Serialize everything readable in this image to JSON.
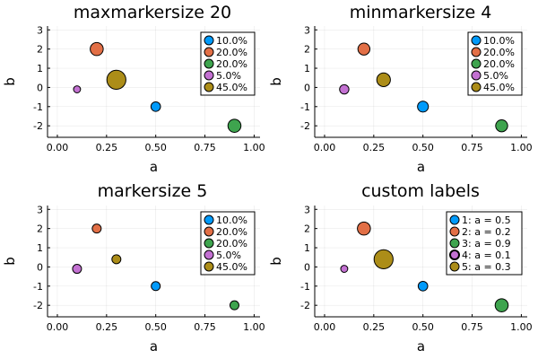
{
  "chart_data": [
    {
      "type": "scatter",
      "title": "maxmarkersize 20",
      "xlabel": "a",
      "ylabel": "b",
      "xlim": [
        -0.05,
        1.03
      ],
      "ylim": [
        -2.6,
        3.2
      ],
      "xticks": [
        "0.00",
        "0.25",
        "0.50",
        "0.75",
        "1.00"
      ],
      "yticks": [
        "-2",
        "-1",
        "0",
        "1",
        "2",
        "3"
      ],
      "grid": true,
      "legend_position": "top-right",
      "series": [
        {
          "name": "10.0%",
          "color": "#009AFA",
          "x": 0.5,
          "y": -1,
          "marker_size": 10
        },
        {
          "name": "20.0%",
          "color": "#E26F46",
          "x": 0.2,
          "y": 2,
          "marker_size": 20
        },
        {
          "name": "20.0%",
          "color": "#3EA44E",
          "x": 0.9,
          "y": -2,
          "marker_size": 20
        },
        {
          "name": "5.0%",
          "color": "#C371D2",
          "x": 0.1,
          "y": -0.1,
          "marker_size": 5
        },
        {
          "name": "45.0%",
          "color": "#AC8D18",
          "x": 0.3,
          "y": 0.4,
          "marker_size": 45
        }
      ]
    },
    {
      "type": "scatter",
      "title": "minmarkersize 4",
      "xlabel": "a",
      "ylabel": "b",
      "xlim": [
        -0.05,
        1.03
      ],
      "ylim": [
        -2.6,
        3.2
      ],
      "xticks": [
        "0.00",
        "0.25",
        "0.50",
        "0.75",
        "1.00"
      ],
      "yticks": [
        "-2",
        "-1",
        "0",
        "1",
        "2",
        "3"
      ],
      "grid": true,
      "legend_position": "top-right",
      "series": [
        {
          "name": "10.0%",
          "color": "#009AFA",
          "x": 0.5,
          "y": -1,
          "marker_size": 10
        },
        {
          "name": "20.0%",
          "color": "#E26F46",
          "x": 0.2,
          "y": 2,
          "marker_size": 20
        },
        {
          "name": "20.0%",
          "color": "#3EA44E",
          "x": 0.9,
          "y": -2,
          "marker_size": 20
        },
        {
          "name": "5.0%",
          "color": "#C371D2",
          "x": 0.1,
          "y": -0.1,
          "marker_size": 5
        },
        {
          "name": "45.0%",
          "color": "#AC8D18",
          "x": 0.3,
          "y": 0.4,
          "marker_size": 45
        }
      ]
    },
    {
      "type": "scatter",
      "title": "markersize 5",
      "xlabel": "a",
      "ylabel": "b",
      "xlim": [
        -0.05,
        1.03
      ],
      "ylim": [
        -2.6,
        3.2
      ],
      "xticks": [
        "0.00",
        "0.25",
        "0.50",
        "0.75",
        "1.00"
      ],
      "yticks": [
        "-2",
        "-1",
        "0",
        "1",
        "2",
        "3"
      ],
      "grid": true,
      "legend_position": "top-right",
      "series": [
        {
          "name": "10.0%",
          "color": "#009AFA",
          "x": 0.5,
          "y": -1,
          "marker_size": 5
        },
        {
          "name": "20.0%",
          "color": "#E26F46",
          "x": 0.2,
          "y": 2,
          "marker_size": 5
        },
        {
          "name": "20.0%",
          "color": "#3EA44E",
          "x": 0.9,
          "y": -2,
          "marker_size": 5
        },
        {
          "name": "5.0%",
          "color": "#C371D2",
          "x": 0.1,
          "y": -0.1,
          "marker_size": 5
        },
        {
          "name": "45.0%",
          "color": "#AC8D18",
          "x": 0.3,
          "y": 0.4,
          "marker_size": 5
        }
      ]
    },
    {
      "type": "scatter",
      "title": "custom labels",
      "xlabel": "a",
      "ylabel": "b",
      "xlim": [
        -0.05,
        1.03
      ],
      "ylim": [
        -2.6,
        3.2
      ],
      "xticks": [
        "0.00",
        "0.25",
        "0.50",
        "0.75",
        "1.00"
      ],
      "yticks": [
        "-2",
        "-1",
        "0",
        "1",
        "2",
        "3"
      ],
      "grid": true,
      "legend_position": "top-right",
      "series": [
        {
          "name": "1: a = 0.5",
          "color": "#009AFA",
          "x": 0.5,
          "y": -1,
          "marker_size": 10
        },
        {
          "name": "2: a = 0.2",
          "color": "#E26F46",
          "x": 0.2,
          "y": 2,
          "marker_size": 20
        },
        {
          "name": "3: a = 0.9",
          "color": "#3EA44E",
          "x": 0.9,
          "y": -2,
          "marker_size": 20
        },
        {
          "name": "4: a = 0.1",
          "color": "#C371D2",
          "x": 0.1,
          "y": -0.1,
          "marker_size": 5
        },
        {
          "name": "5: a = 0.3",
          "color": "#AC8D18",
          "x": 0.3,
          "y": 0.4,
          "marker_size": 45
        }
      ]
    }
  ]
}
